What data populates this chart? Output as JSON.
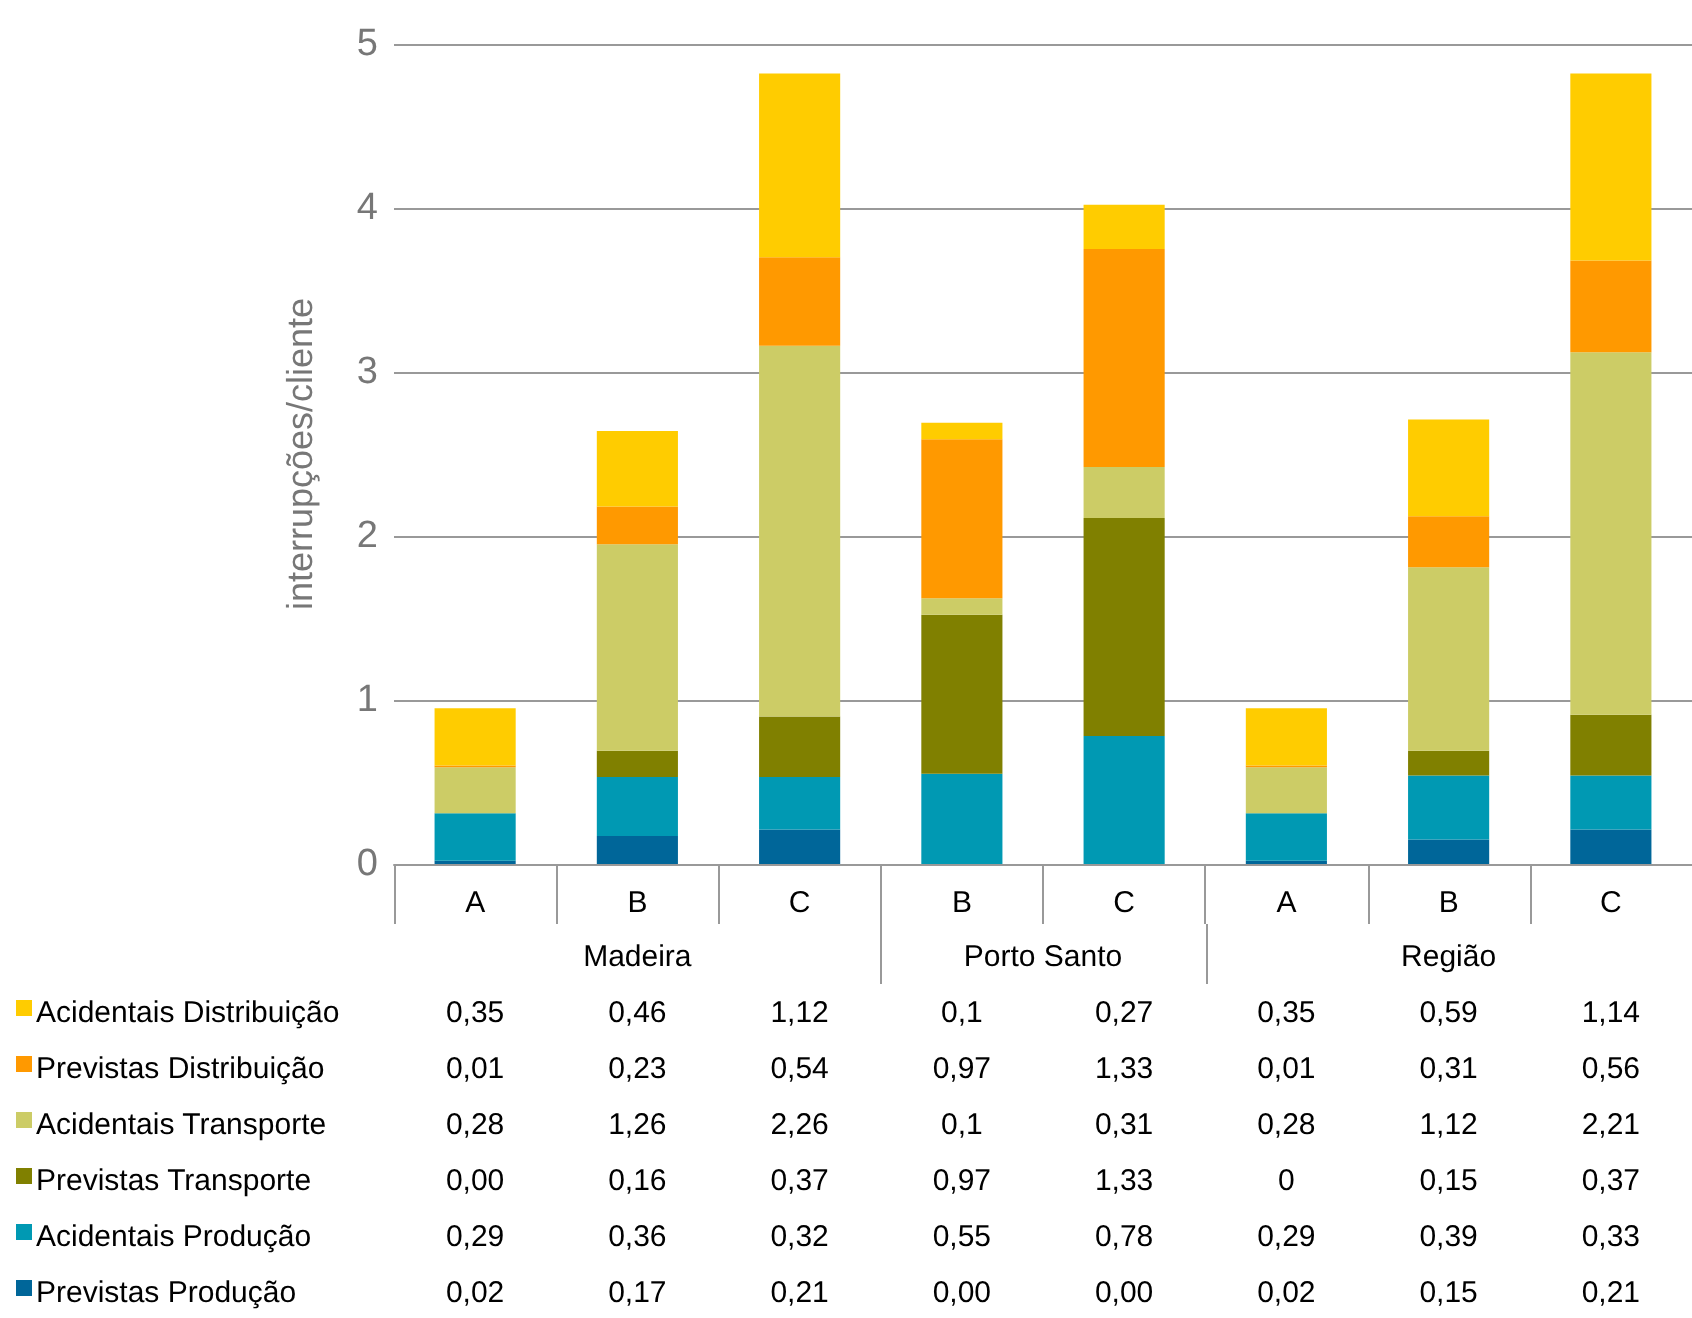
{
  "chart_data": {
    "type": "bar",
    "stacked": true,
    "ylabel": "interrupções/cliente",
    "categories": [
      "A",
      "B",
      "C",
      "B",
      "C",
      "A",
      "B",
      "C"
    ],
    "annotations": [
      "Madeira",
      "Porto Santo",
      "Região"
    ],
    "ylim": [
      0,
      5
    ],
    "yticks": [
      0,
      1,
      2,
      3,
      4,
      5
    ],
    "grid": "y",
    "legend": "bottom",
    "series": [
      {
        "name": "Previstas Produção",
        "color": "#006699",
        "values": [
          0.02,
          0.17,
          0.21,
          0.0,
          0.0,
          0.02,
          0.15,
          0.21
        ],
        "value_labels": [
          "0,02",
          "0,17",
          "0,21",
          "0,00",
          "0,00",
          "0,02",
          "0,15",
          "0,21"
        ]
      },
      {
        "name": "Acidentais Produção",
        "color": "#0099b3",
        "values": [
          0.29,
          0.36,
          0.32,
          0.55,
          0.78,
          0.29,
          0.39,
          0.33
        ],
        "value_labels": [
          "0,29",
          "0,36",
          "0,32",
          "0,55",
          "0,78",
          "0,29",
          "0,39",
          "0,33"
        ]
      },
      {
        "name": "Previstas Transporte",
        "color": "#808000",
        "values": [
          0.0,
          0.16,
          0.37,
          0.97,
          1.33,
          0,
          0.15,
          0.37
        ],
        "value_labels": [
          "0,00",
          "0,16",
          "0,37",
          "0,97",
          "1,33",
          "0",
          "0,15",
          "0,37"
        ]
      },
      {
        "name": "Acidentais Transporte",
        "color": "#cccc66",
        "values": [
          0.28,
          1.26,
          2.26,
          0.1,
          0.31,
          0.28,
          1.12,
          2.21
        ],
        "value_labels": [
          "0,28",
          "1,26",
          "2,26",
          "0,1",
          "0,31",
          "0,28",
          "1,12",
          "2,21"
        ]
      },
      {
        "name": "Previstas Distribuição",
        "color": "#ff9900",
        "values": [
          0.01,
          0.23,
          0.54,
          0.97,
          1.33,
          0.01,
          0.31,
          0.56
        ],
        "value_labels": [
          "0,01",
          "0,23",
          "0,54",
          "0,97",
          "1,33",
          "0,01",
          "0,31",
          "0,56"
        ]
      },
      {
        "name": "Acidentais Distribuição",
        "color": "#ffcc00",
        "values": [
          0.35,
          0.46,
          1.12,
          0.1,
          0.27,
          0.35,
          0.59,
          1.14
        ],
        "value_labels": [
          "0,35",
          "0,46",
          "1,12",
          "0,1",
          "0,27",
          "0,35",
          "0,59",
          "1,14"
        ]
      }
    ]
  }
}
